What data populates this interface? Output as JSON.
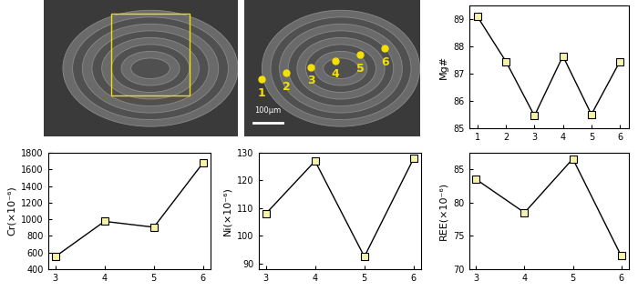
{
  "images": [
    {
      "type": "micrograph"
    },
    {
      "type": "micrograph",
      "points": [
        "1",
        "2",
        "3",
        "4",
        "5",
        "6"
      ],
      "scale_bar": "100μm"
    }
  ],
  "chart_data": [
    {
      "type": "line",
      "x": [
        1,
        2,
        3,
        4,
        5,
        6
      ],
      "values": [
        89.1,
        87.45,
        85.45,
        87.65,
        85.5,
        87.45
      ],
      "ylabel": "Mg#",
      "xlim": [
        0.7,
        6.3
      ],
      "xticks": [
        1,
        2,
        3,
        4,
        5,
        6
      ],
      "ylim": [
        85,
        89.5
      ],
      "yticks": [
        85,
        86,
        87,
        88,
        89
      ],
      "marker": "square",
      "color": "#f7f3a8"
    },
    {
      "type": "line",
      "x": [
        3,
        4,
        5,
        6
      ],
      "values": [
        550,
        975,
        905,
        1680
      ],
      "ylabel": "Cr(×10⁻⁶)",
      "xlim": [
        2.85,
        6.15
      ],
      "xticks": [
        3,
        4,
        5,
        6
      ],
      "ylim": [
        400,
        1800
      ],
      "yticks": [
        400,
        600,
        800,
        1000,
        1200,
        1400,
        1600,
        1800
      ],
      "marker": "square",
      "color": "#f7f3a8"
    },
    {
      "type": "line",
      "x": [
        3,
        4,
        5,
        6
      ],
      "values": [
        108,
        127,
        92.5,
        128
      ],
      "ylabel": "Ni(×10⁻⁶)",
      "xlim": [
        2.85,
        6.15
      ],
      "xticks": [
        3,
        4,
        5,
        6
      ],
      "ylim": [
        88,
        130
      ],
      "yticks": [
        90,
        100,
        110,
        120,
        130
      ],
      "marker": "square",
      "color": "#f7f3a8"
    },
    {
      "type": "line",
      "x": [
        3,
        4,
        5,
        6
      ],
      "values": [
        83.5,
        78.5,
        86.6,
        72
      ],
      "ylabel": "REE(×10⁻⁶)",
      "xlim": [
        2.85,
        6.15
      ],
      "xticks": [
        3,
        4,
        5,
        6
      ],
      "ylim": [
        70,
        87.5
      ],
      "yticks": [
        70,
        75,
        80,
        85
      ],
      "marker": "square",
      "color": "#f7f3a8"
    }
  ]
}
